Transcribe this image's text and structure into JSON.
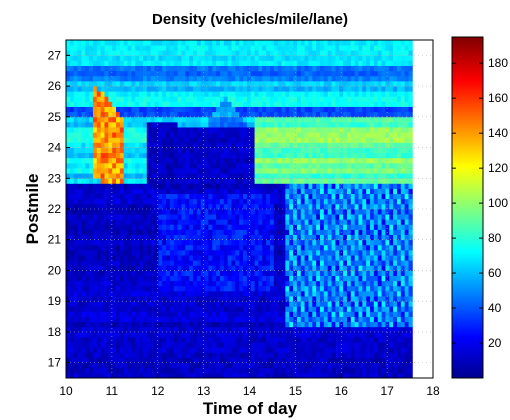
{
  "chart_data": {
    "type": "heatmap",
    "title": "Density (vehicles/mile/lane)",
    "xlabel": "Time of day",
    "ylabel": "Postmile",
    "xlim": [
      10,
      18
    ],
    "ylim": [
      16.5,
      27.5
    ],
    "data_x_range": [
      10,
      17.55
    ],
    "x_ticks": [
      10,
      11,
      12,
      13,
      14,
      15,
      16,
      17,
      18
    ],
    "y_ticks": [
      17,
      18,
      19,
      20,
      21,
      22,
      23,
      24,
      25,
      26,
      27
    ],
    "grid": true,
    "colormap": "jet",
    "colorbar": {
      "min": 0,
      "max": 195,
      "ticks": [
        20,
        40,
        60,
        80,
        100,
        120,
        140,
        160,
        180
      ]
    },
    "colors": {
      "low": "#00008f",
      "field": "#0a3cf0",
      "mid": "#00c8ff",
      "high_band": "#28e0c0",
      "peak": "#ff7010",
      "max": "#800000"
    },
    "features": [
      {
        "feature": "extreme congestion queue",
        "time": [
          10.6,
          11.3
        ],
        "postmile": [
          22.8,
          26.1
        ],
        "density": 140
      },
      {
        "feature": "heavy bands upstream",
        "time": [
          14.1,
          17.55
        ],
        "postmile": [
          22.8,
          25.0
        ],
        "density": 90
      },
      {
        "feature": "light traffic block",
        "time": [
          10.0,
          17.55
        ],
        "postmile": [
          16.5,
          22.8
        ],
        "density": 15
      },
      {
        "feature": "moderate stripes",
        "time": [
          14.8,
          17.55
        ],
        "postmile": [
          18.2,
          22.8
        ],
        "density": 60
      }
    ]
  }
}
